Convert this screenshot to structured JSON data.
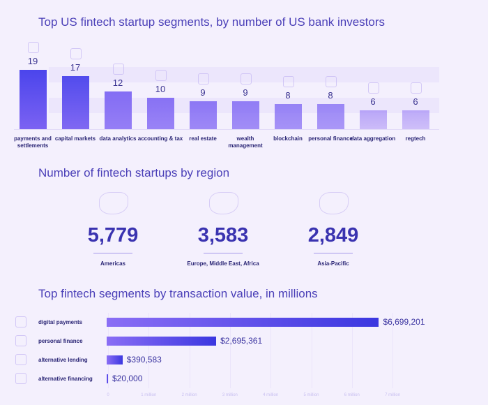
{
  "chart_data": [
    {
      "type": "bar",
      "title": "Top US fintech startup segments, by number of US bank investors",
      "categories": [
        "payments and settlements",
        "capital markets",
        "data analytics",
        "accounting & tax",
        "real estate",
        "wealth management",
        "blockchain",
        "personal finance",
        "data aggregation",
        "regtech"
      ],
      "values": [
        19,
        17,
        12,
        10,
        9,
        9,
        8,
        8,
        6,
        6
      ],
      "ylim": [
        0,
        19
      ],
      "grid": false
    },
    {
      "type": "table",
      "title": "Number of fintech startups by region",
      "categories": [
        "Americas",
        "Europe, Middle East, Africa",
        "Asia-Pacific"
      ],
      "values_text": [
        "5,779",
        "3,583",
        "2,849"
      ],
      "values": [
        5779,
        3583,
        2849
      ]
    },
    {
      "type": "bar",
      "orientation": "horizontal",
      "title": "Top fintech segments by transaction value, in millions",
      "categories": [
        "digital payments",
        "personal finance",
        "alternative lending",
        "alternative financing"
      ],
      "values": [
        6699201,
        2695361,
        390583,
        20000
      ],
      "value_labels": [
        "$6,699,201",
        "$2,695,361",
        "$390,583",
        "$20,000"
      ],
      "xticks": [
        "0",
        "1 million",
        "2 million",
        "3 million",
        "4 million",
        "5 million",
        "6 million",
        "7 million"
      ],
      "xlim": [
        0,
        7000000
      ],
      "grid": true
    }
  ],
  "colors": {
    "bar_dark": "#3b37e0",
    "bar_light": "#8a6ef5",
    "title": "#4b40b8",
    "background": "#f4f0fd"
  }
}
